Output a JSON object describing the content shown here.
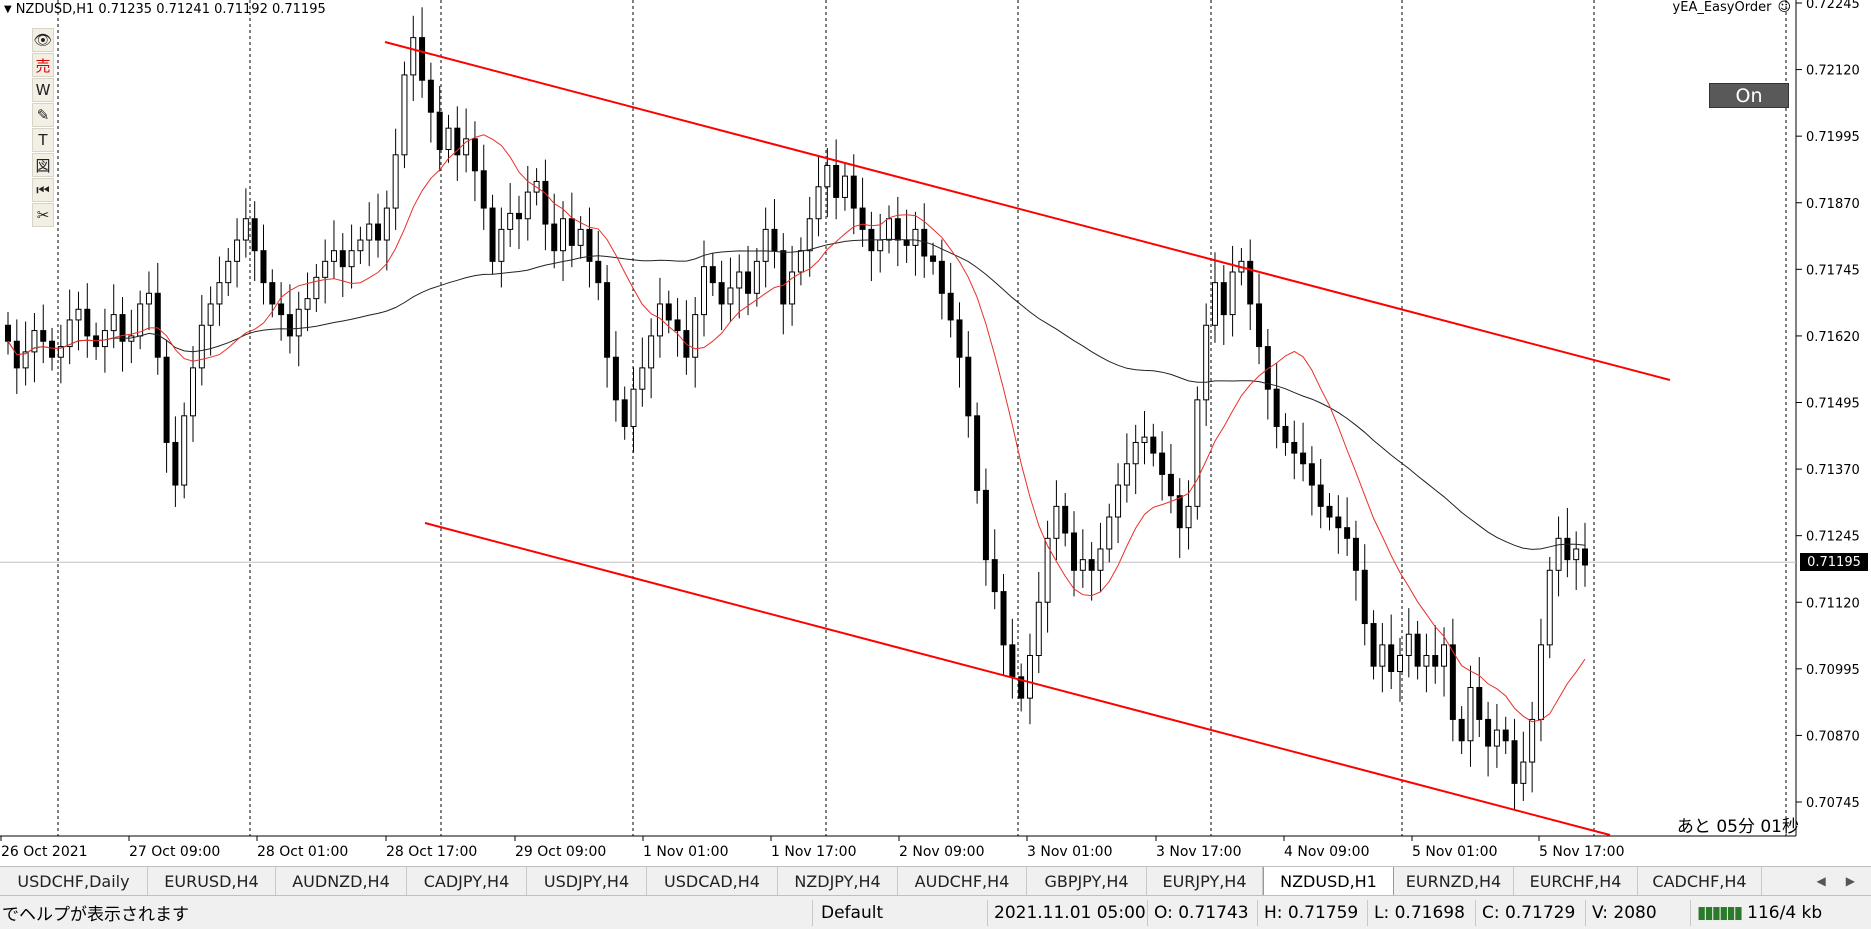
{
  "header": {
    "symbol": "NZDUSD,H1",
    "ohlc": "0.71235 0.71241 0.71192 0.71195"
  },
  "ea": {
    "name": "yEA_EasyOrder",
    "smile_icon": "smile-icon",
    "toggle_label": "On"
  },
  "toolbar": {
    "icons": [
      "eye-icon",
      "sell-icon",
      "wave-icon",
      "pencil-icon",
      "text-icon",
      "shape-icon",
      "rewind-icon",
      "scissors-icon"
    ],
    "glyphs": [
      "👁",
      "売",
      "W",
      "✎",
      "T",
      "図",
      "⏮",
      "✂"
    ]
  },
  "remaining_time": "あと 05分 01秒",
  "current_price": "0.71195",
  "colors": {
    "channel": "#ff0000",
    "ma_fast": "#e8302a",
    "ma_slow": "#222222",
    "price_tag_bg": "#000000"
  },
  "chart_data": {
    "type": "candlestick",
    "symbol": "NZDUSD",
    "timeframe": "H1",
    "y_tick_labels": [
      "0.72245",
      "0.72120",
      "0.71995",
      "0.71870",
      "0.71745",
      "0.71620",
      "0.71495",
      "0.71370",
      "0.71245",
      "0.71120",
      "0.70995",
      "0.70870",
      "0.70745"
    ],
    "x_tick_labels": [
      "26 Oct 2021",
      "27 Oct 09:00",
      "28 Oct 01:00",
      "28 Oct 17:00",
      "29 Oct 09:00",
      "1 Nov 01:00",
      "1 Nov 17:00",
      "2 Nov 09:00",
      "3 Nov 01:00",
      "3 Nov 17:00",
      "4 Nov 09:00",
      "5 Nov 01:00",
      "5 Nov 17:00"
    ],
    "current_price": 0.71195,
    "candle_closes": [
      0.7161,
      0.7156,
      0.7159,
      0.7163,
      0.7161,
      0.7158,
      0.716,
      0.7165,
      0.7167,
      0.7162,
      0.716,
      0.7163,
      0.7166,
      0.7161,
      0.7162,
      0.7168,
      0.717,
      0.7158,
      0.7142,
      0.7134,
      0.7147,
      0.7156,
      0.7164,
      0.7168,
      0.7172,
      0.7176,
      0.718,
      0.7184,
      0.7178,
      0.7172,
      0.7168,
      0.7166,
      0.7162,
      0.7167,
      0.7169,
      0.7173,
      0.7176,
      0.7178,
      0.7175,
      0.7178,
      0.718,
      0.7183,
      0.718,
      0.7186,
      0.7196,
      0.7211,
      0.7218,
      0.721,
      0.7204,
      0.7197,
      0.7201,
      0.7196,
      0.7199,
      0.7193,
      0.7186,
      0.7176,
      0.7182,
      0.7185,
      0.7184,
      0.7189,
      0.7191,
      0.7183,
      0.7178,
      0.7184,
      0.7179,
      0.7182,
      0.7176,
      0.7172,
      0.7158,
      0.715,
      0.7145,
      0.7152,
      0.7156,
      0.7162,
      0.7168,
      0.7165,
      0.7163,
      0.7158,
      0.7166,
      0.7175,
      0.7172,
      0.7168,
      0.7171,
      0.7174,
      0.717,
      0.7176,
      0.7182,
      0.7178,
      0.7168,
      0.7174,
      0.7178,
      0.7184,
      0.719,
      0.7194,
      0.7188,
      0.7192,
      0.7186,
      0.7182,
      0.7178,
      0.718,
      0.7184,
      0.718,
      0.7179,
      0.7182,
      0.7177,
      0.7176,
      0.717,
      0.7165,
      0.7158,
      0.7147,
      0.7133,
      0.712,
      0.7114,
      0.7104,
      0.7098,
      0.7094,
      0.7102,
      0.7112,
      0.7124,
      0.713,
      0.7125,
      0.7118,
      0.712,
      0.7118,
      0.7122,
      0.7128,
      0.7134,
      0.7138,
      0.7142,
      0.7143,
      0.714,
      0.7136,
      0.7132,
      0.7126,
      0.713,
      0.715,
      0.7164,
      0.7172,
      0.7166,
      0.7174,
      0.7176,
      0.7168,
      0.716,
      0.7152,
      0.7145,
      0.7142,
      0.714,
      0.7138,
      0.7134,
      0.713,
      0.7128,
      0.7126,
      0.7124,
      0.7118,
      0.7108,
      0.71,
      0.7104,
      0.7099,
      0.7102,
      0.7106,
      0.71,
      0.7102,
      0.71,
      0.7104,
      0.709,
      0.7086,
      0.7096,
      0.709,
      0.7085,
      0.7088,
      0.7086,
      0.7078,
      0.7082,
      0.709,
      0.7104,
      0.7118,
      0.7124,
      0.712,
      0.7122,
      0.7119
    ]
  },
  "tabs": [
    {
      "label": "USDCHF,Daily"
    },
    {
      "label": "EURUSD,H4"
    },
    {
      "label": "AUDNZD,H4"
    },
    {
      "label": "CADJPY,H4"
    },
    {
      "label": "USDJPY,H4"
    },
    {
      "label": "USDCAD,H4"
    },
    {
      "label": "NZDJPY,H4"
    },
    {
      "label": "AUDCHF,H4"
    },
    {
      "label": "GBPJPY,H4"
    },
    {
      "label": "EURJPY,H4"
    },
    {
      "label": "NZDUSD,H1",
      "active": true
    },
    {
      "label": "EURNZD,H4"
    },
    {
      "label": "EURCHF,H4"
    },
    {
      "label": "CADCHF,H4"
    }
  ],
  "status": {
    "help": "でヘルプが表示されます",
    "profile": "Default",
    "datetime": "2021.11.01 05:00",
    "open": "O: 0.71743",
    "high": "H: 0.71759",
    "low": "L: 0.71698",
    "close": "C: 0.71729",
    "volume": "V: 2080",
    "traffic": "116/4 kb"
  }
}
